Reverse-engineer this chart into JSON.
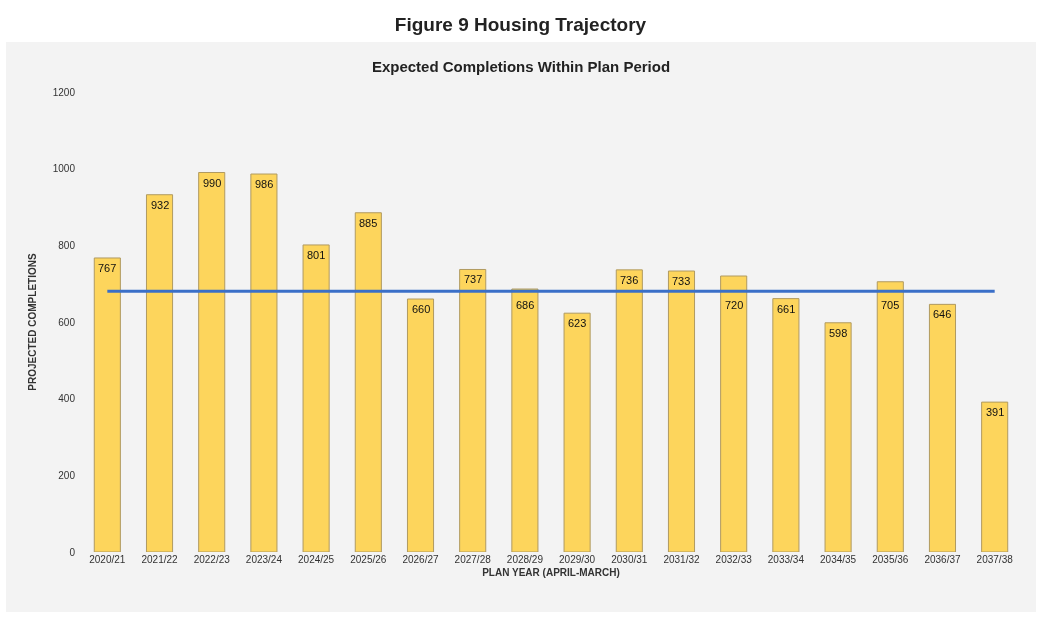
{
  "chart_data": {
    "type": "bar",
    "title": "Figure 9 Housing Trajectory",
    "subtitle": "Expected Completions Within Plan Period",
    "xlabel": "PLAN YEAR (APRIL-MARCH)",
    "ylabel": "PROJECTED COMPLETIONS",
    "categories": [
      "2020/21",
      "2021/22",
      "2022/23",
      "2023/24",
      "2024/25",
      "2025/26",
      "2026/27",
      "2027/28",
      "2028/29",
      "2029/30",
      "2030/31",
      "2031/32",
      "2032/33",
      "2033/34",
      "2034/35",
      "2035/36",
      "2036/37",
      "2037/38"
    ],
    "values": [
      767,
      932,
      990,
      986,
      801,
      885,
      660,
      737,
      686,
      623,
      736,
      733,
      720,
      661,
      598,
      705,
      646,
      391
    ],
    "color": "#fdd55c",
    "data_labels": true,
    "ylim": [
      0,
      1200
    ],
    "yticks": [
      0,
      200,
      400,
      600,
      800,
      1000,
      1200
    ],
    "grid": false,
    "ref_lines": [
      {
        "axis": "y",
        "value": 680,
        "color": "#3a6fc8"
      }
    ]
  }
}
